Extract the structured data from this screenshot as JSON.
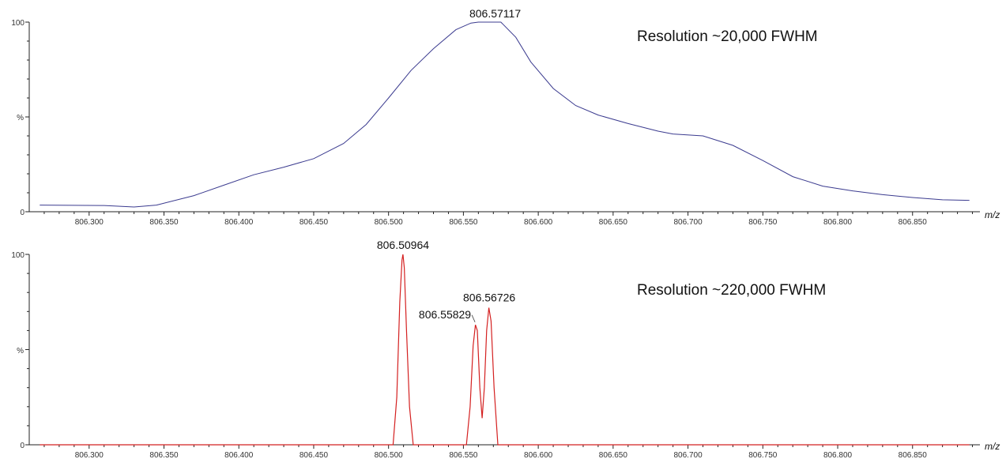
{
  "chart_data": [
    {
      "type": "line",
      "color": "#3b3b8f",
      "annotation": "Resolution ~20,000 FWHM",
      "xlabel": "m/z",
      "ylabel": "%",
      "xlim": [
        806.26,
        806.895
      ],
      "ylim": [
        0,
        100
      ],
      "y_ticks": [
        "100",
        "%",
        "0"
      ],
      "x_ticks": [
        "806.300",
        "806.350",
        "806.400",
        "806.450",
        "806.500",
        "806.550",
        "806.600",
        "806.650",
        "806.700",
        "806.750",
        "806.800",
        "806.850"
      ],
      "peak_labels": [
        {
          "text": "806.57117",
          "x": 806.5712,
          "y": 100
        }
      ],
      "x": [
        806.267,
        806.31,
        806.33,
        806.345,
        806.37,
        806.39,
        806.41,
        806.43,
        806.45,
        806.47,
        806.485,
        806.5,
        806.515,
        806.53,
        806.545,
        806.555,
        806.56,
        806.575,
        806.585,
        806.595,
        806.61,
        806.625,
        806.64,
        806.66,
        806.68,
        806.69,
        806.71,
        806.73,
        806.75,
        806.77,
        806.79,
        806.81,
        806.83,
        806.85,
        806.87,
        806.888
      ],
      "y": [
        3.5,
        3.3,
        2.5,
        3.5,
        8.5,
        14,
        19.5,
        23.5,
        28,
        36,
        46,
        60,
        74.5,
        86,
        96,
        99.5,
        100,
        100,
        92,
        79,
        65,
        56,
        51,
        46.5,
        42.5,
        41,
        40,
        35,
        27,
        18.5,
        13.5,
        11,
        9,
        7.5,
        6.3,
        6
      ]
    },
    {
      "type": "line",
      "color": "#d42020",
      "annotation": "Resolution ~220,000 FWHM",
      "xlabel": "m/z",
      "ylabel": "%",
      "xlim": [
        806.26,
        806.895
      ],
      "ylim": [
        0,
        100
      ],
      "y_ticks": [
        "100",
        "%",
        "0"
      ],
      "x_ticks": [
        "806.300",
        "806.350",
        "806.400",
        "806.450",
        "806.500",
        "806.550",
        "806.600",
        "806.650",
        "806.700",
        "806.750",
        "806.800",
        "806.850"
      ],
      "peak_labels": [
        {
          "text": "806.50964",
          "x": 806.50964,
          "y": 100
        },
        {
          "text": "806.55829",
          "x": 806.55829,
          "y": 64
        },
        {
          "text": "806.56726",
          "x": 806.56726,
          "y": 72
        }
      ],
      "x": [
        806.267,
        806.503,
        806.5055,
        806.5075,
        806.509,
        806.5096,
        806.5105,
        806.512,
        806.514,
        806.5165,
        806.552,
        806.5545,
        806.5565,
        806.558,
        806.5593,
        806.561,
        806.5625,
        806.564,
        806.5655,
        806.567,
        806.5685,
        806.5705,
        806.573,
        806.888
      ],
      "y": [
        0,
        0,
        25,
        75,
        97,
        100,
        93,
        60,
        20,
        0,
        0,
        20,
        52,
        63,
        60,
        30,
        14,
        30,
        60,
        72,
        65,
        30,
        0,
        0
      ]
    }
  ]
}
